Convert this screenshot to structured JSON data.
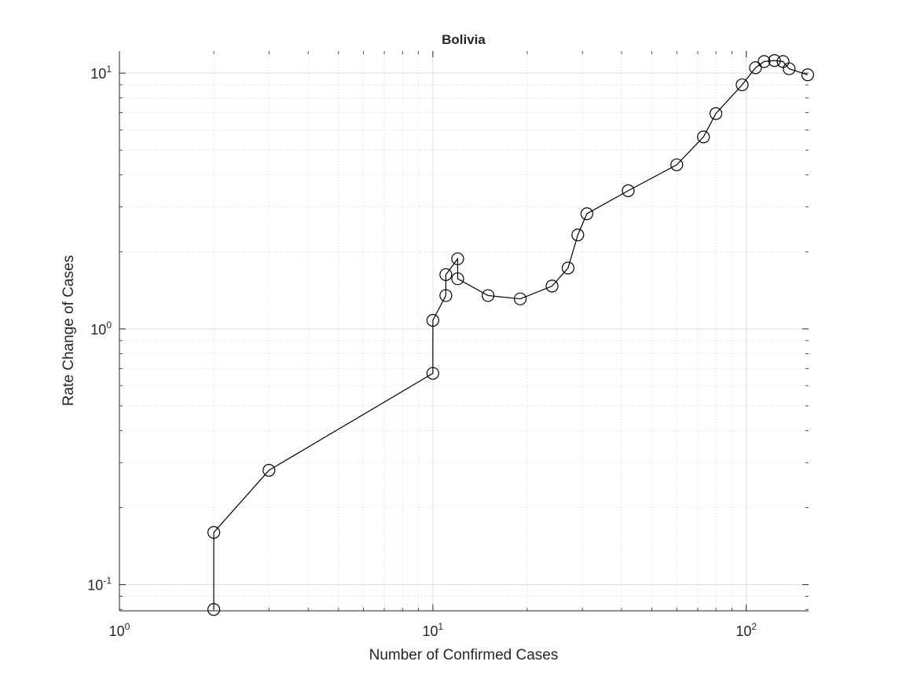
{
  "chart_data": {
    "type": "line",
    "title": "Bolivia",
    "xlabel": "Number of Confirmed Cases",
    "ylabel": "Rate Change of Cases",
    "xscale": "log",
    "yscale": "log",
    "xlim": [
      1,
      158
    ],
    "ylim": [
      0.079,
      12.2
    ],
    "grid": true,
    "minor_grid": true,
    "marker": "circle",
    "line_color": "#000000",
    "x_ticks": [
      {
        "value": 1,
        "base": "10",
        "exp": "0"
      },
      {
        "value": 10,
        "base": "10",
        "exp": "1"
      },
      {
        "value": 100,
        "base": "10",
        "exp": "2"
      }
    ],
    "y_ticks": [
      {
        "value": 0.1,
        "base": "10",
        "exp": "-1"
      },
      {
        "value": 1,
        "base": "10",
        "exp": "0"
      },
      {
        "value": 10,
        "base": "10",
        "exp": "1"
      }
    ],
    "x": [
      2,
      2,
      3,
      10,
      10,
      11,
      11,
      12,
      12,
      15,
      19,
      24,
      27,
      29,
      31,
      42,
      60,
      73,
      80,
      97,
      107,
      114,
      123,
      131,
      137,
      157
    ],
    "y": [
      0.08,
      0.16,
      0.28,
      0.67,
      1.08,
      1.35,
      1.63,
      1.88,
      1.57,
      1.35,
      1.31,
      1.47,
      1.73,
      2.33,
      2.82,
      3.47,
      4.38,
      5.63,
      6.95,
      9.0,
      10.5,
      11.1,
      11.2,
      11.1,
      10.4,
      9.85
    ]
  }
}
